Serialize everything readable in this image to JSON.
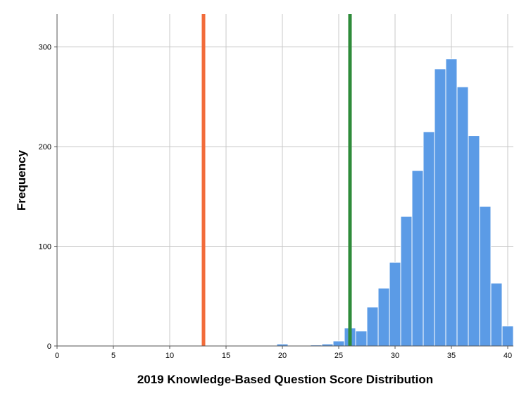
{
  "chart_data": {
    "type": "bar",
    "title": "",
    "xlabel": "2019 Knowledge-Based Question Score Distribution",
    "ylabel": "Frequency",
    "xlim": [
      0,
      40.5
    ],
    "ylim": [
      0,
      333
    ],
    "x_ticks": [
      0,
      5,
      10,
      15,
      20,
      25,
      30,
      35,
      40
    ],
    "y_ticks": [
      0,
      100,
      200,
      300
    ],
    "grid": true,
    "bin_width": 1,
    "bar_color": "#5b9be6",
    "bar_edge_color": "#ffffff",
    "bins": [
      {
        "x": 20,
        "count": 2
      },
      {
        "x": 21,
        "count": 0
      },
      {
        "x": 22,
        "count": 0
      },
      {
        "x": 23,
        "count": 1
      },
      {
        "x": 24,
        "count": 2
      },
      {
        "x": 25,
        "count": 5
      },
      {
        "x": 26,
        "count": 18
      },
      {
        "x": 27,
        "count": 15
      },
      {
        "x": 28,
        "count": 39
      },
      {
        "x": 29,
        "count": 58
      },
      {
        "x": 30,
        "count": 84
      },
      {
        "x": 31,
        "count": 130
      },
      {
        "x": 32,
        "count": 176
      },
      {
        "x": 33,
        "count": 215
      },
      {
        "x": 34,
        "count": 278
      },
      {
        "x": 35,
        "count": 288
      },
      {
        "x": 36,
        "count": 260
      },
      {
        "x": 37,
        "count": 211
      },
      {
        "x": 38,
        "count": 140
      },
      {
        "x": 39,
        "count": 63
      },
      {
        "x": 40,
        "count": 20
      }
    ],
    "reference_lines": [
      {
        "x": 13,
        "color": "#f26b3a"
      },
      {
        "x": 26,
        "color": "#2e8b3a"
      }
    ]
  }
}
